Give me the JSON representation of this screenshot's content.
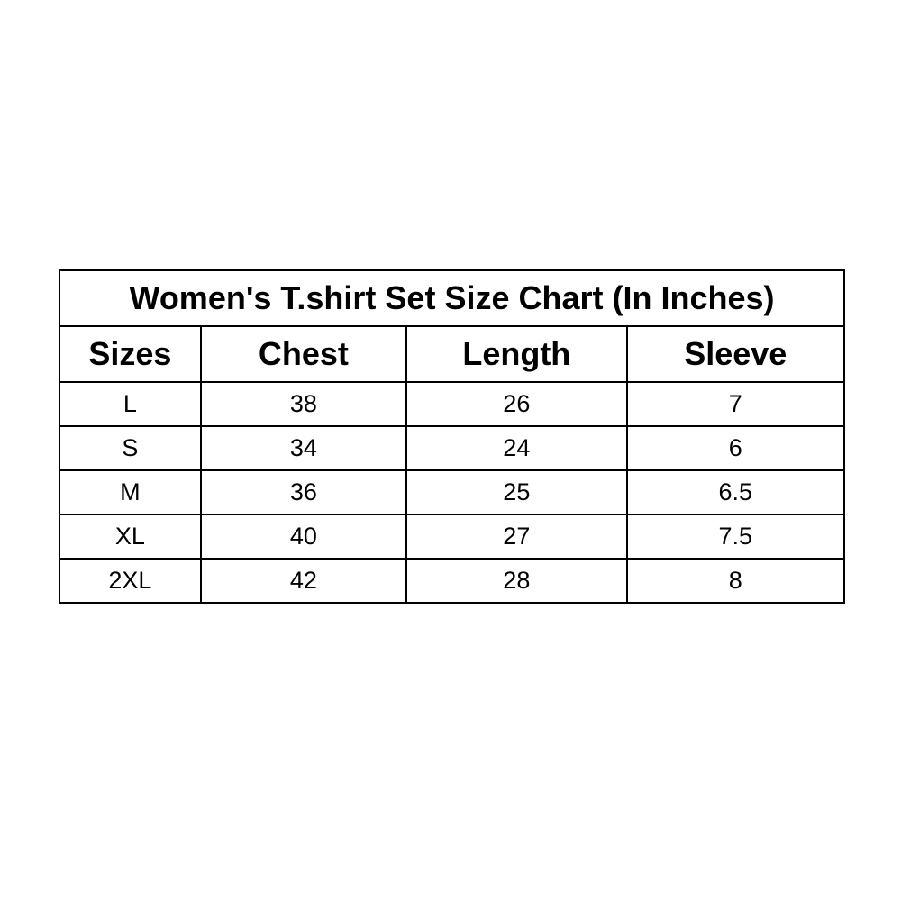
{
  "title": "Women's T.shirt Set Size Chart (In Inches)",
  "headers": [
    "Sizes",
    "Chest",
    "Length",
    "Sleeve"
  ],
  "rows": [
    [
      "L",
      "38",
      "26",
      "7"
    ],
    [
      "S",
      "34",
      "24",
      "6"
    ],
    [
      "M",
      "36",
      "25",
      "6.5"
    ],
    [
      "XL",
      "40",
      "27",
      "7.5"
    ],
    [
      "2XL",
      "42",
      "28",
      "8"
    ]
  ]
}
